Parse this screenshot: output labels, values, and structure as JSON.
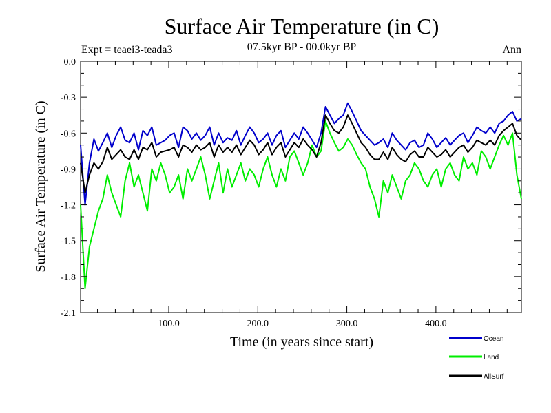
{
  "chart_data": {
    "type": "line",
    "title": "Surface Air Temperature (in C)",
    "subtitle_left": "Expt = teaei3-teada3",
    "subtitle_center": "07.5kyr BP - 00.0kyr BP",
    "subtitle_right": "Ann",
    "xlabel": "Time (in years since start)",
    "ylabel": "Surface Air Temperature (in C)",
    "xlim": [
      1,
      496
    ],
    "ylim": [
      -2.1,
      0.0
    ],
    "xticks": [
      100,
      200,
      300,
      400
    ],
    "xtick_labels": [
      "100.0",
      "200.0",
      "300.0",
      "400.0"
    ],
    "yticks": [
      0.0,
      -0.3,
      -0.6,
      -0.9,
      -1.2,
      -1.5,
      -1.8,
      -2.1
    ],
    "ytick_labels": [
      "0.0",
      "-0.3",
      "-0.6",
      "-0.9",
      "-1.2",
      "-1.5",
      "-1.8",
      "-2.1"
    ],
    "legend_position": "bottom-right",
    "x_start": 1,
    "x_step": 5,
    "series": [
      {
        "name": "Ocean",
        "color": "#0000cc",
        "values": [
          -0.7,
          -1.2,
          -0.85,
          -0.65,
          -0.75,
          -0.68,
          -0.6,
          -0.72,
          -0.62,
          -0.55,
          -0.66,
          -0.68,
          -0.6,
          -0.74,
          -0.58,
          -0.62,
          -0.55,
          -0.7,
          -0.68,
          -0.66,
          -0.62,
          -0.6,
          -0.72,
          -0.55,
          -0.58,
          -0.65,
          -0.6,
          -0.66,
          -0.62,
          -0.55,
          -0.7,
          -0.6,
          -0.68,
          -0.64,
          -0.66,
          -0.58,
          -0.7,
          -0.62,
          -0.55,
          -0.6,
          -0.68,
          -0.65,
          -0.6,
          -0.7,
          -0.62,
          -0.58,
          -0.72,
          -0.66,
          -0.6,
          -0.65,
          -0.55,
          -0.6,
          -0.66,
          -0.72,
          -0.6,
          -0.38,
          -0.45,
          -0.52,
          -0.48,
          -0.45,
          -0.35,
          -0.42,
          -0.5,
          -0.58,
          -0.62,
          -0.66,
          -0.7,
          -0.68,
          -0.65,
          -0.72,
          -0.6,
          -0.66,
          -0.7,
          -0.74,
          -0.68,
          -0.66,
          -0.72,
          -0.7,
          -0.6,
          -0.65,
          -0.72,
          -0.68,
          -0.64,
          -0.7,
          -0.66,
          -0.62,
          -0.6,
          -0.68,
          -0.62,
          -0.55,
          -0.58,
          -0.6,
          -0.55,
          -0.6,
          -0.52,
          -0.5,
          -0.45,
          -0.42,
          -0.5,
          -0.48
        ]
      },
      {
        "name": "Land",
        "color": "#00ee00",
        "values": [
          -1.2,
          -1.9,
          -1.55,
          -1.4,
          -1.25,
          -1.15,
          -0.95,
          -1.1,
          -1.2,
          -1.3,
          -1.0,
          -0.85,
          -1.05,
          -0.95,
          -1.1,
          -1.25,
          -0.9,
          -1.0,
          -0.85,
          -0.95,
          -1.1,
          -1.05,
          -0.95,
          -1.15,
          -0.9,
          -1.0,
          -0.9,
          -0.8,
          -0.95,
          -1.15,
          -1.0,
          -0.85,
          -1.1,
          -0.9,
          -1.05,
          -0.95,
          -0.85,
          -1.0,
          -0.9,
          -0.95,
          -1.05,
          -0.9,
          -0.8,
          -0.95,
          -1.05,
          -0.9,
          -1.0,
          -0.8,
          -0.75,
          -0.85,
          -0.95,
          -0.85,
          -0.7,
          -0.8,
          -0.75,
          -0.5,
          -0.6,
          -0.68,
          -0.75,
          -0.72,
          -0.65,
          -0.7,
          -0.78,
          -0.85,
          -0.9,
          -1.05,
          -1.15,
          -1.3,
          -1.0,
          -1.1,
          -0.95,
          -1.05,
          -1.15,
          -1.0,
          -0.95,
          -0.85,
          -0.9,
          -1.0,
          -1.05,
          -0.95,
          -0.9,
          -1.05,
          -0.9,
          -0.85,
          -0.95,
          -1.0,
          -0.8,
          -0.9,
          -0.85,
          -0.95,
          -0.75,
          -0.8,
          -0.9,
          -0.8,
          -0.7,
          -0.62,
          -0.7,
          -0.6,
          -0.95,
          -1.15
        ]
      },
      {
        "name": "AllSurf",
        "color": "#000000",
        "values": [
          -0.85,
          -1.1,
          -0.95,
          -0.85,
          -0.9,
          -0.84,
          -0.72,
          -0.82,
          -0.78,
          -0.74,
          -0.8,
          -0.82,
          -0.74,
          -0.82,
          -0.72,
          -0.74,
          -0.68,
          -0.8,
          -0.76,
          -0.75,
          -0.74,
          -0.72,
          -0.8,
          -0.7,
          -0.72,
          -0.76,
          -0.7,
          -0.74,
          -0.72,
          -0.68,
          -0.8,
          -0.7,
          -0.76,
          -0.72,
          -0.76,
          -0.7,
          -0.78,
          -0.72,
          -0.66,
          -0.7,
          -0.78,
          -0.74,
          -0.68,
          -0.78,
          -0.72,
          -0.68,
          -0.8,
          -0.74,
          -0.68,
          -0.72,
          -0.65,
          -0.7,
          -0.74,
          -0.8,
          -0.68,
          -0.45,
          -0.52,
          -0.58,
          -0.6,
          -0.55,
          -0.45,
          -0.52,
          -0.6,
          -0.68,
          -0.72,
          -0.78,
          -0.82,
          -0.82,
          -0.76,
          -0.82,
          -0.72,
          -0.78,
          -0.82,
          -0.84,
          -0.78,
          -0.75,
          -0.8,
          -0.8,
          -0.72,
          -0.76,
          -0.8,
          -0.78,
          -0.74,
          -0.8,
          -0.76,
          -0.72,
          -0.7,
          -0.76,
          -0.72,
          -0.66,
          -0.68,
          -0.7,
          -0.66,
          -0.7,
          -0.62,
          -0.58,
          -0.55,
          -0.52,
          -0.62,
          -0.66
        ]
      }
    ]
  }
}
